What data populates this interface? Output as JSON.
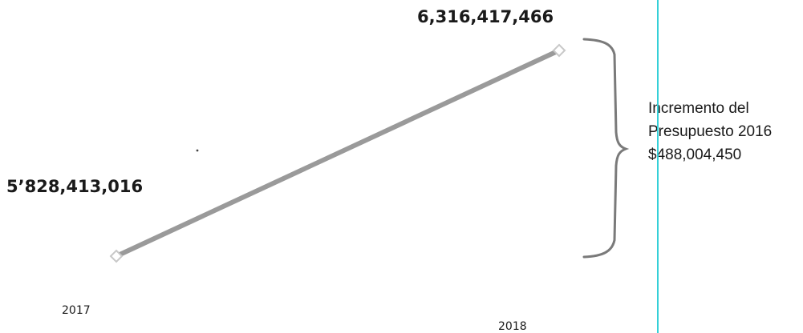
{
  "chart_data": {
    "type": "line",
    "categories": [
      "2017",
      "2018"
    ],
    "series": [
      {
        "values": [
          5828413016,
          6316417466
        ],
        "color": "#9a9a9a"
      }
    ],
    "data_labels": [
      "5’828,413,016",
      "6,316,417,466"
    ],
    "annotation": {
      "lines": [
        "Incremento del",
        "Presupuesto 2016",
        "$488,004,450"
      ],
      "bracket_color": "#7a7a7a"
    },
    "guide_line_color": "#35d0d8",
    "grid": false,
    "legend": false
  }
}
